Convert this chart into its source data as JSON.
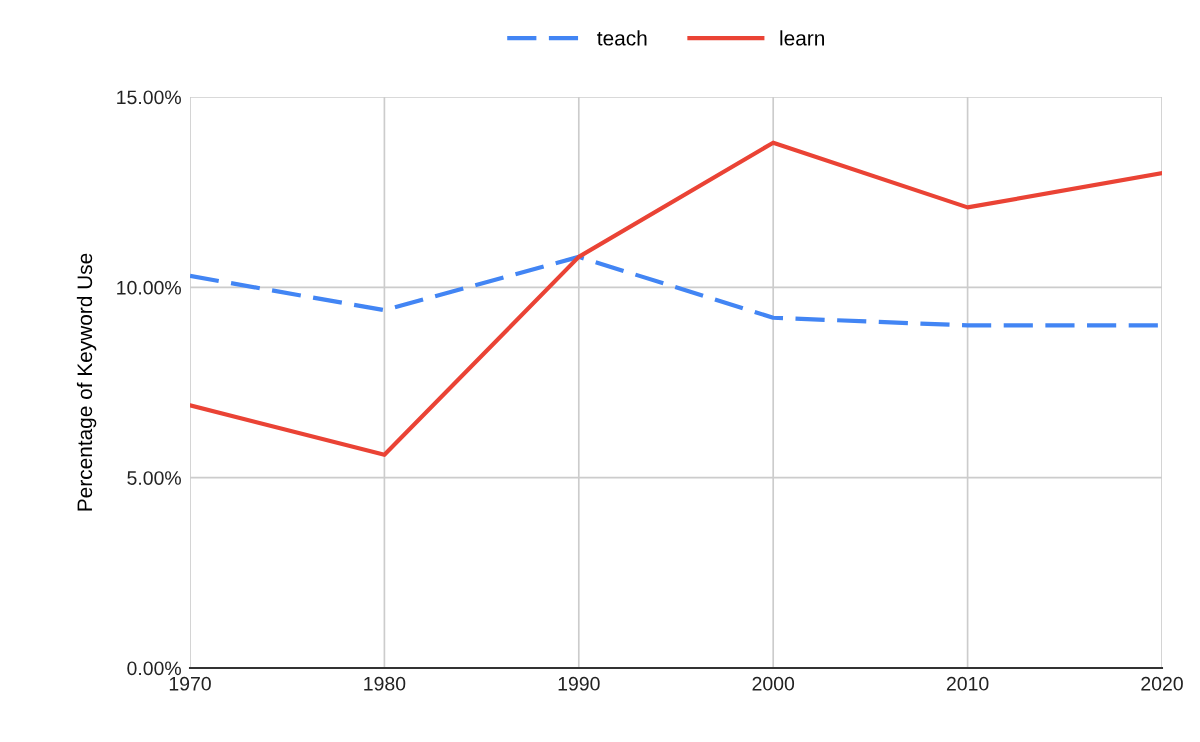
{
  "chart_data": {
    "type": "line",
    "ylabel": "Percentage of Keyword Use",
    "x": [
      1970,
      1980,
      1990,
      2000,
      2010,
      2020
    ],
    "series": [
      {
        "name": "teach",
        "color": "#4285f4",
        "line_style": "dashed",
        "values": [
          10.3,
          9.4,
          10.8,
          9.2,
          9.0,
          9.0
        ]
      },
      {
        "name": "learn",
        "color": "#ea4335",
        "line_style": "solid",
        "values": [
          6.9,
          5.6,
          10.8,
          13.8,
          12.1,
          13.0
        ]
      }
    ],
    "xlim": [
      1970,
      2020
    ],
    "xticks": [
      1970,
      1980,
      1990,
      2000,
      2010,
      2020
    ],
    "ylim": [
      0,
      15
    ],
    "yticks": [
      {
        "value": 0,
        "label": "0.00%"
      },
      {
        "value": 5,
        "label": "5.00%"
      },
      {
        "value": 10,
        "label": "10.00%"
      },
      {
        "value": 15,
        "label": "15.00%"
      }
    ],
    "grid": true,
    "legend": "top",
    "marker": "none"
  }
}
